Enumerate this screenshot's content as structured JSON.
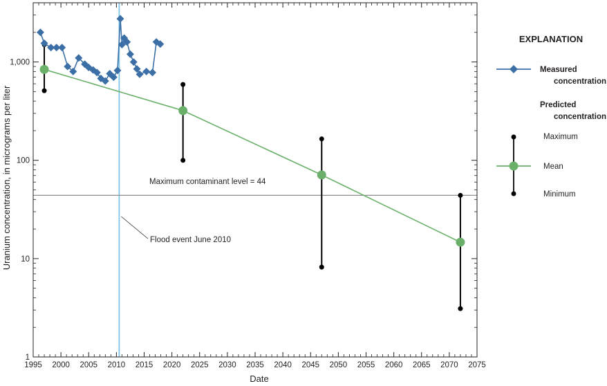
{
  "chart_data": {
    "type": "line",
    "xlabel": "Date",
    "ylabel": "Uranium concentration, in micrograms per liter",
    "x_ticks": [
      1995,
      2000,
      2005,
      2010,
      2015,
      2020,
      2025,
      2030,
      2035,
      2040,
      2045,
      2050,
      2055,
      2060,
      2065,
      2070,
      2075
    ],
    "y_scale": "log",
    "ylim": [
      1,
      4000
    ],
    "xlim": [
      1995,
      2075
    ],
    "y_ticks": [
      {
        "value": 1,
        "label": "1"
      },
      {
        "value": 10,
        "label": "10"
      },
      {
        "value": 100,
        "label": "100"
      },
      {
        "value": 1000,
        "label": "1,000"
      }
    ],
    "measured": {
      "name": "Measured concentration",
      "color": "#3b6fa6",
      "x": [
        1996.3,
        1997.0,
        1998.2,
        1999.2,
        2000.2,
        2001.2,
        2002.2,
        2003.2,
        2004.3,
        2005.0,
        2005.8,
        2006.5,
        2007.2,
        2008.0,
        2008.8,
        2009.5,
        2010.2,
        2010.7,
        2011.0,
        2011.4,
        2011.9,
        2012.5,
        2013.1,
        2013.7,
        2014.2,
        2015.4,
        2016.5,
        2017.2,
        2017.9
      ],
      "y": [
        2000,
        1550,
        1400,
        1400,
        1400,
        900,
        800,
        1100,
        950,
        880,
        830,
        780,
        680,
        640,
        760,
        700,
        820,
        2750,
        1500,
        1750,
        1600,
        1200,
        1000,
        850,
        750,
        800,
        780,
        1600,
        1520
      ]
    },
    "predicted": {
      "name": "Predicted concentration",
      "mean_color": "#6ab06a",
      "range_color": "#000000",
      "points": [
        {
          "x": 1997,
          "mean": 840,
          "max": 1500,
          "min": 510
        },
        {
          "x": 2022,
          "mean": 320,
          "max": 590,
          "min": 100
        },
        {
          "x": 2047,
          "mean": 71,
          "max": 165,
          "min": 8.2
        },
        {
          "x": 2072,
          "mean": 14.7,
          "max": 44,
          "min": 3.1
        }
      ]
    },
    "mcl": {
      "value": 44,
      "label": "Maximum contaminant level = 44",
      "color": "#8c8c8c"
    },
    "flood": {
      "x": 2010.5,
      "label": "Flood event June 2010",
      "color": "#7fc6e6"
    },
    "legend": {
      "title": "EXPLANATION",
      "measured_label_1": "Measured",
      "measured_label_2": "concentration",
      "predicted_label_1": "Predicted",
      "predicted_label_2": "concentration",
      "max_label": "Maximum",
      "mean_label": "Mean",
      "min_label": "Minimum"
    }
  }
}
